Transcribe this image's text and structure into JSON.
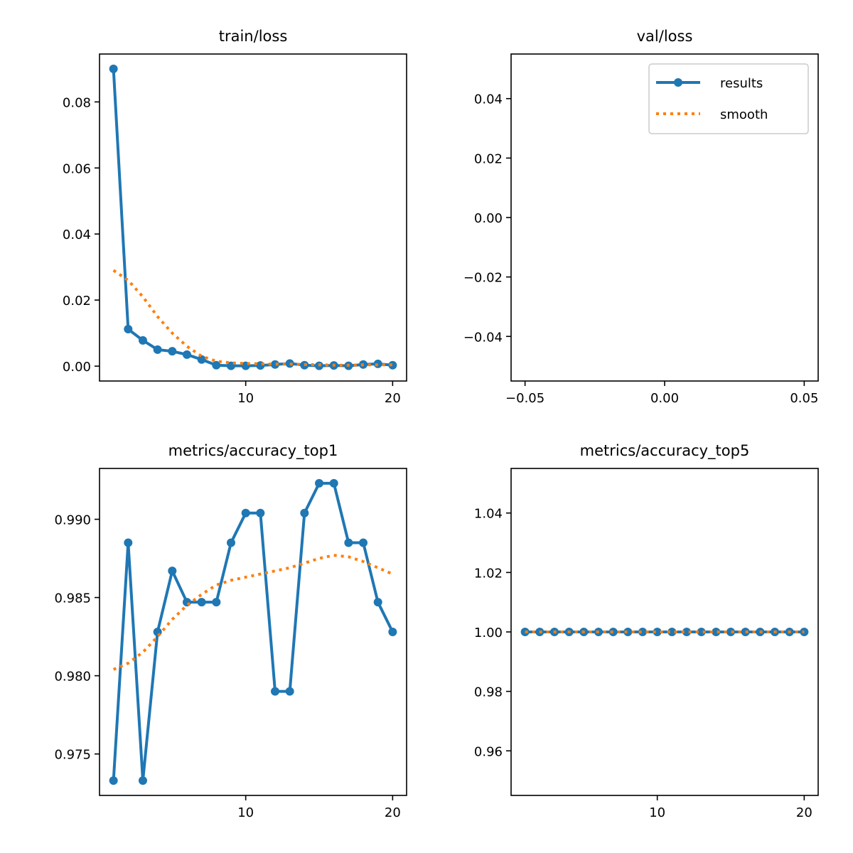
{
  "colors": {
    "results": "#1f77b4",
    "smooth": "#ff7f0e",
    "axes": "#000000",
    "background": "#ffffff"
  },
  "legend": {
    "location": "top-right",
    "panel": 1,
    "entries": [
      "results",
      "smooth"
    ]
  },
  "chart_data": [
    {
      "type": "line",
      "title": "train/loss",
      "xlim": [
        0.05,
        20.95
      ],
      "ylim": [
        -0.0045,
        0.0945
      ],
      "xticks": [
        10,
        20
      ],
      "xtick_labels": [
        "10",
        "20"
      ],
      "yticks": [
        0,
        0.02,
        0.04,
        0.06,
        0.08
      ],
      "ytick_labels": [
        "0.00",
        "0.02",
        "0.04",
        "0.06",
        "0.08"
      ],
      "grid": false,
      "x": [
        1,
        2,
        3,
        4,
        5,
        6,
        7,
        8,
        9,
        10,
        11,
        12,
        13,
        14,
        15,
        16,
        17,
        18,
        19,
        20
      ],
      "series": [
        {
          "name": "results",
          "style": "line-marker",
          "values": [
            0.09,
            0.0112,
            0.0078,
            0.005,
            0.0045,
            0.0035,
            0.002,
            0.0003,
            0.0001,
            0.0001,
            0.0002,
            0.0005,
            0.0008,
            0.0003,
            0.0001,
            0.0002,
            0.0001,
            0.0005,
            0.0007,
            0.0003
          ]
        },
        {
          "name": "smooth",
          "style": "dotted",
          "values": [
            0.029,
            0.026,
            0.021,
            0.015,
            0.01,
            0.006,
            0.003,
            0.0015,
            0.001,
            0.0008,
            0.0007,
            0.0006,
            0.0006,
            0.0005,
            0.0004,
            0.0003,
            0.0003,
            0.0004,
            0.0004,
            0.0004
          ]
        }
      ]
    },
    {
      "type": "line",
      "title": "val/loss",
      "xlim": [
        -0.055,
        0.055
      ],
      "ylim": [
        -0.055,
        0.055
      ],
      "xticks": [
        -0.05,
        0,
        0.05
      ],
      "xtick_labels": [
        "−0.05",
        "0.00",
        "0.05"
      ],
      "yticks": [
        -0.04,
        -0.02,
        0,
        0.02,
        0.04
      ],
      "ytick_labels": [
        "−0.04",
        "−0.02",
        "0.00",
        "0.02",
        "0.04"
      ],
      "grid": false,
      "x": [],
      "series": [
        {
          "name": "results",
          "style": "line-marker",
          "values": []
        },
        {
          "name": "smooth",
          "style": "dotted",
          "values": []
        }
      ]
    },
    {
      "type": "line",
      "title": "metrics/accuracy_top1",
      "xlim": [
        0.05,
        20.95
      ],
      "ylim": [
        0.97235,
        0.99325
      ],
      "xticks": [
        10,
        20
      ],
      "xtick_labels": [
        "10",
        "20"
      ],
      "yticks": [
        0.975,
        0.98,
        0.985,
        0.99
      ],
      "ytick_labels": [
        "0.975",
        "0.980",
        "0.985",
        "0.990"
      ],
      "grid": false,
      "x": [
        1,
        2,
        3,
        4,
        5,
        6,
        7,
        8,
        9,
        10,
        11,
        12,
        13,
        14,
        15,
        16,
        17,
        18,
        19,
        20
      ],
      "series": [
        {
          "name": "results",
          "style": "line-marker",
          "values": [
            0.9733,
            0.9885,
            0.9733,
            0.9828,
            0.9867,
            0.9847,
            0.9847,
            0.9847,
            0.9885,
            0.9904,
            0.9904,
            0.979,
            0.979,
            0.9904,
            0.9923,
            0.9923,
            0.9885,
            0.9885,
            0.9847,
            0.9828
          ]
        },
        {
          "name": "smooth",
          "style": "dotted",
          "values": [
            0.9804,
            0.9808,
            0.9815,
            0.9825,
            0.9836,
            0.9845,
            0.9852,
            0.9858,
            0.9861,
            0.9863,
            0.9865,
            0.9867,
            0.9869,
            0.9872,
            0.9875,
            0.9877,
            0.9876,
            0.9873,
            0.9869,
            0.9865
          ]
        }
      ]
    },
    {
      "type": "line",
      "title": "metrics/accuracy_top5",
      "xlim": [
        0.05,
        20.95
      ],
      "ylim": [
        0.945,
        1.055
      ],
      "xticks": [
        10,
        20
      ],
      "xtick_labels": [
        "10",
        "20"
      ],
      "yticks": [
        0.96,
        0.98,
        1.0,
        1.02,
        1.04
      ],
      "ytick_labels": [
        "0.96",
        "0.98",
        "1.00",
        "1.02",
        "1.04"
      ],
      "grid": false,
      "x": [
        1,
        2,
        3,
        4,
        5,
        6,
        7,
        8,
        9,
        10,
        11,
        12,
        13,
        14,
        15,
        16,
        17,
        18,
        19,
        20
      ],
      "series": [
        {
          "name": "results",
          "style": "line-marker",
          "values": [
            1,
            1,
            1,
            1,
            1,
            1,
            1,
            1,
            1,
            1,
            1,
            1,
            1,
            1,
            1,
            1,
            1,
            1,
            1,
            1
          ]
        },
        {
          "name": "smooth",
          "style": "dotted",
          "values": [
            1,
            1,
            1,
            1,
            1,
            1,
            1,
            1,
            1,
            1,
            1,
            1,
            1,
            1,
            1,
            1,
            1,
            1,
            1,
            1
          ]
        }
      ]
    }
  ]
}
